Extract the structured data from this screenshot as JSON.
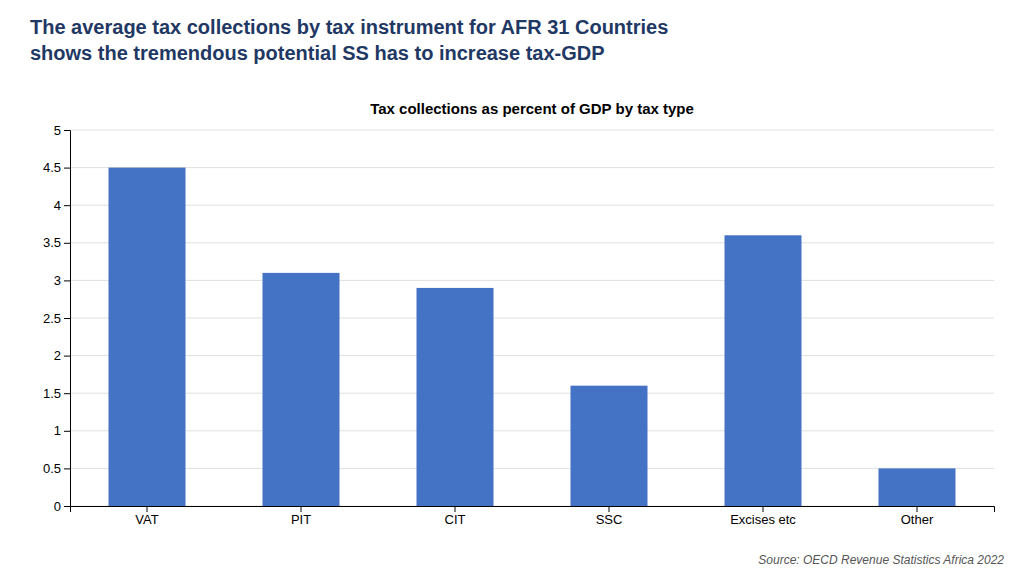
{
  "chart_data": {
    "type": "bar",
    "title": [
      "The average tax collections by tax instrument for AFR 31 Countries",
      "shows the tremendous potential SS has to increase tax-GDP"
    ],
    "subtitle": "Tax collections as percent of GDP by tax type",
    "annotations": [
      "Source: OECD Revenue Statistics Africa 2022"
    ],
    "categories": [
      "VAT",
      "PIT",
      "CIT",
      "SSC",
      "Excises etc",
      "Other"
    ],
    "values": [
      4.5,
      3.1,
      2.9,
      1.6,
      3.6,
      0.5
    ],
    "color": "#4472C4",
    "ylim": [
      0,
      5
    ],
    "yticks": [
      0,
      0.5,
      1,
      1.5,
      2,
      2.5,
      3,
      3.5,
      4,
      4.5,
      5
    ],
    "grid": true
  }
}
